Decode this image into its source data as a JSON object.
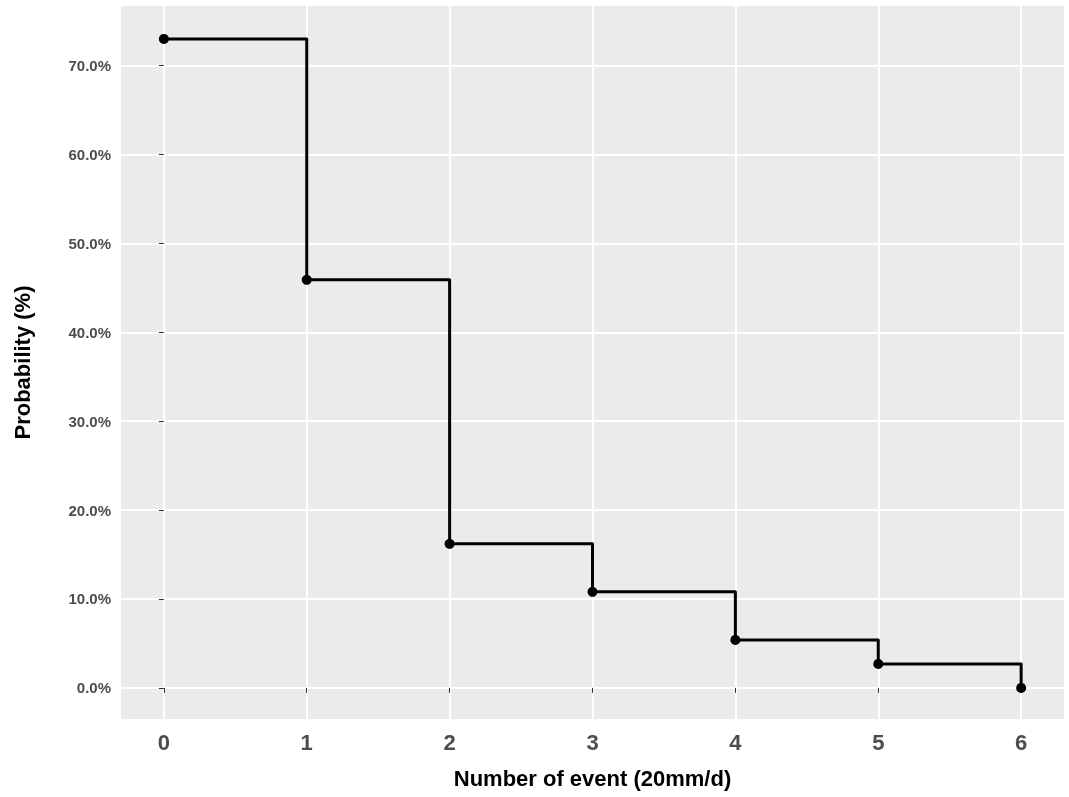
{
  "chart_data": {
    "type": "step",
    "xlabel": "Number of event (20mm/d)",
    "ylabel": "Probability (%)",
    "x": [
      0,
      1,
      2,
      3,
      4,
      5,
      6
    ],
    "values": [
      73.0,
      45.9,
      16.2,
      10.8,
      5.4,
      2.7,
      0.0
    ],
    "color": "#000000",
    "marker": "circle",
    "line_style": "solid",
    "grid": true,
    "xlim": [
      -0.3,
      6.3
    ],
    "xticks": [
      0,
      1,
      2,
      3,
      4,
      5,
      6
    ],
    "ylim": [
      -3.5,
      76.7
    ],
    "yticks": [
      {
        "value": 0,
        "label": "0.0%"
      },
      {
        "value": 10,
        "label": "10.0%"
      },
      {
        "value": 20,
        "label": "20.0%"
      },
      {
        "value": 30,
        "label": "30.0%"
      },
      {
        "value": 40,
        "label": "40.0%"
      },
      {
        "value": 50,
        "label": "50.0%"
      },
      {
        "value": 60,
        "label": "60.0%"
      },
      {
        "value": 70,
        "label": "70.0%"
      }
    ]
  }
}
